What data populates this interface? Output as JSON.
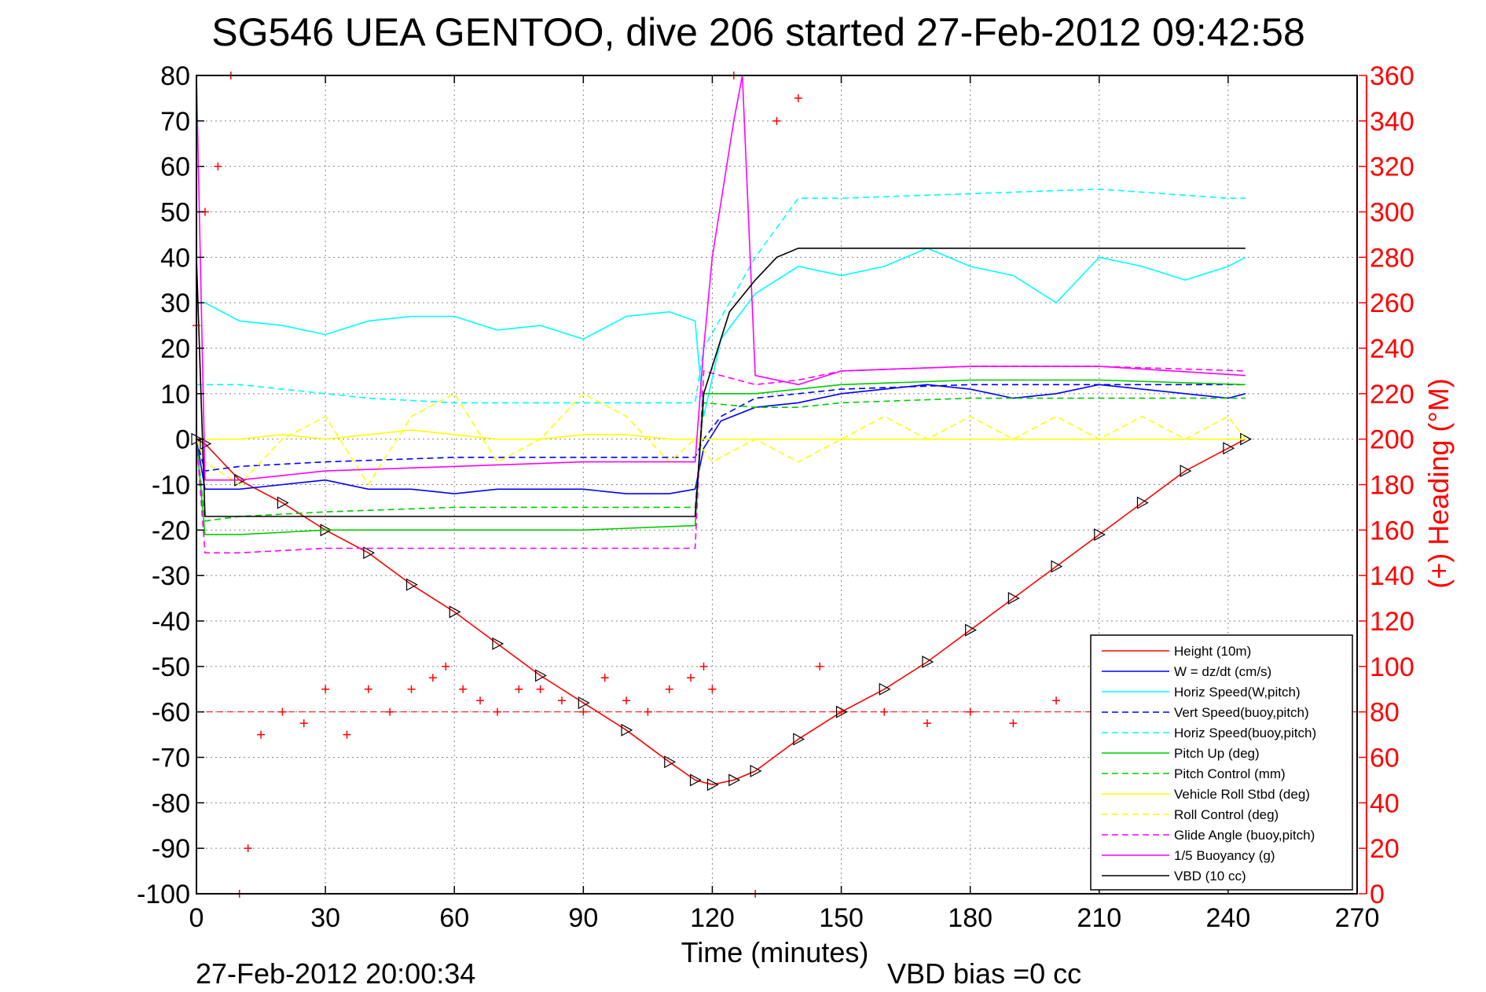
{
  "chart_data": {
    "type": "line",
    "title": "SG546 UEA GENTOO, dive 206 started 27-Feb-2012 09:42:58",
    "xlabel": "Time (minutes)",
    "ylabel_right": "(+) Heading (°M)",
    "xlim": [
      0,
      270
    ],
    "ylim": [
      -100,
      80
    ],
    "ylim_right": [
      0,
      360
    ],
    "x_ticks": [
      "0",
      "30",
      "60",
      "90",
      "120",
      "150",
      "180",
      "210",
      "240",
      "270"
    ],
    "y_ticks": [
      "80",
      "70",
      "60",
      "50",
      "40",
      "30",
      "20",
      "10",
      "0",
      "-10",
      "-20",
      "-30",
      "-40",
      "-50",
      "-60",
      "-70",
      "-80",
      "-90",
      "-100"
    ],
    "y_ticks_right": [
      "360",
      "340",
      "320",
      "300",
      "280",
      "260",
      "240",
      "220",
      "200",
      "180",
      "160",
      "140",
      "120",
      "100",
      "80",
      "60",
      "40",
      "20",
      "0"
    ],
    "grid": true,
    "legend_placement": "bottom-right",
    "footer_left": "27-Feb-2012 20:00:34",
    "footer_right": "VBD bias =0 cc",
    "colors": {
      "height": "#ff0000",
      "w": "#0000ff",
      "horiz_speed": "#00ffff",
      "pitch": "#00cc00",
      "roll": "#ffff00",
      "glide": "#ff00ff",
      "vbd": "#000000"
    },
    "series": [
      {
        "name": "Height (10m)",
        "color": "#ff0000",
        "style": "solid",
        "x": [
          0,
          2,
          10,
          20,
          30,
          40,
          50,
          60,
          70,
          80,
          90,
          100,
          110,
          116,
          120,
          125,
          130,
          140,
          150,
          160,
          170,
          180,
          190,
          200,
          210,
          220,
          230,
          240,
          244
        ],
        "y": [
          0,
          -1,
          -9,
          -14,
          -20,
          -25,
          -32,
          -38,
          -45,
          -52,
          -58,
          -64,
          -71,
          -75,
          -76,
          -75,
          -73,
          -66,
          -60,
          -55,
          -49,
          -42,
          -35,
          -28,
          -21,
          -14,
          -7,
          -2,
          0
        ]
      },
      {
        "name": "W = dz/dt (cm/s)",
        "color": "#0000ff",
        "style": "solid",
        "x": [
          0,
          2,
          10,
          20,
          30,
          40,
          50,
          60,
          70,
          80,
          90,
          100,
          110,
          116,
          118,
          122,
          130,
          140,
          150,
          160,
          170,
          180,
          190,
          200,
          210,
          220,
          230,
          240,
          244
        ],
        "y": [
          0,
          -11,
          -11,
          -10,
          -9,
          -11,
          -11,
          -12,
          -11,
          -11,
          -11,
          -12,
          -12,
          -11,
          -2,
          4,
          7,
          8,
          10,
          11,
          12,
          11,
          9,
          10,
          12,
          11,
          10,
          9,
          10
        ]
      },
      {
        "name": "Horiz Speed(W,pitch)",
        "color": "#00ffff",
        "style": "solid",
        "x": [
          0,
          2,
          10,
          20,
          30,
          40,
          50,
          60,
          70,
          80,
          90,
          100,
          110,
          116,
          118,
          122,
          130,
          140,
          150,
          160,
          170,
          180,
          190,
          200,
          210,
          220,
          230,
          240,
          244
        ],
        "y": [
          30,
          30,
          26,
          25,
          23,
          26,
          27,
          27,
          24,
          25,
          22,
          27,
          28,
          26,
          5,
          22,
          32,
          38,
          36,
          38,
          42,
          38,
          36,
          30,
          40,
          38,
          35,
          38,
          40
        ]
      },
      {
        "name": "Vert Speed(buoy,pitch)",
        "color": "#0000ff",
        "style": "dashed",
        "x": [
          0,
          2,
          10,
          30,
          60,
          90,
          116,
          118,
          122,
          130,
          140,
          150,
          180,
          210,
          244
        ],
        "y": [
          0,
          -7,
          -6,
          -5,
          -4,
          -4,
          -4,
          0,
          5,
          9,
          10,
          11,
          12,
          12,
          12
        ]
      },
      {
        "name": "Horiz Speed(buoy,pitch)",
        "color": "#00ffff",
        "style": "dashed",
        "x": [
          0,
          2,
          10,
          20,
          30,
          40,
          60,
          90,
          116,
          118,
          130,
          140,
          150,
          180,
          210,
          240,
          244
        ],
        "y": [
          12,
          12,
          12,
          11,
          10,
          9,
          8,
          8,
          8,
          20,
          40,
          53,
          53,
          54,
          55,
          53,
          53
        ]
      },
      {
        "name": "Pitch Up (deg)",
        "color": "#00cc00",
        "style": "solid",
        "x": [
          0,
          2,
          10,
          30,
          60,
          90,
          116,
          118,
          130,
          140,
          150,
          180,
          210,
          244
        ],
        "y": [
          0,
          -21,
          -21,
          -20,
          -20,
          -20,
          -19,
          10,
          10,
          11,
          12,
          13,
          13,
          12
        ]
      },
      {
        "name": "Pitch Control (mm)",
        "color": "#00cc00",
        "style": "dashed",
        "x": [
          0,
          2,
          10,
          30,
          60,
          90,
          116,
          118,
          130,
          140,
          150,
          180,
          210,
          244
        ],
        "y": [
          0,
          -18,
          -17,
          -16,
          -15,
          -15,
          -15,
          8,
          7,
          7,
          8,
          9,
          9,
          9
        ]
      },
      {
        "name": "Vehicle Roll Stbd (deg)",
        "color": "#ffff00",
        "style": "solid",
        "x": [
          0,
          2,
          10,
          20,
          30,
          40,
          50,
          60,
          70,
          80,
          90,
          100,
          110,
          116,
          120,
          130,
          140,
          150,
          160,
          170,
          180,
          190,
          200,
          210,
          220,
          230,
          240,
          244
        ],
        "y": [
          0,
          0,
          0,
          1,
          0,
          1,
          2,
          1,
          0,
          0,
          1,
          1,
          0,
          0,
          0,
          0,
          0,
          0,
          0,
          0,
          0,
          0,
          0,
          0,
          0,
          0,
          0,
          0
        ]
      },
      {
        "name": "Roll Control (deg)",
        "color": "#ffff00",
        "style": "dashed",
        "x": [
          0,
          2,
          10,
          20,
          30,
          40,
          50,
          60,
          70,
          80,
          90,
          100,
          110,
          116,
          120,
          130,
          140,
          150,
          160,
          170,
          180,
          190,
          200,
          210,
          220,
          230,
          240,
          244
        ],
        "y": [
          0,
          -5,
          -10,
          0,
          5,
          -10,
          5,
          10,
          -5,
          0,
          10,
          5,
          -5,
          0,
          -5,
          0,
          -5,
          0,
          5,
          0,
          5,
          0,
          5,
          0,
          5,
          0,
          5,
          0
        ]
      },
      {
        "name": "Glide Angle (buoy,pitch)",
        "color": "#ff00ff",
        "style": "dashed",
        "x": [
          0,
          2,
          10,
          30,
          60,
          90,
          116,
          118,
          130,
          140,
          150,
          180,
          210,
          244
        ],
        "y": [
          0,
          -25,
          -25,
          -24,
          -24,
          -24,
          -24,
          15,
          12,
          13,
          15,
          16,
          16,
          15
        ]
      },
      {
        "name": "1/5 Buoyancy (g)",
        "color": "#ff00ff",
        "style": "solid",
        "x": [
          0,
          2,
          10,
          20,
          30,
          60,
          90,
          116,
          118,
          120,
          125,
          127,
          130,
          140,
          150,
          180,
          210,
          244
        ],
        "y": [
          80,
          -9,
          -9,
          -8,
          -7,
          -6,
          -5,
          -5,
          20,
          40,
          70,
          80,
          14,
          12,
          15,
          16,
          16,
          14
        ]
      },
      {
        "name": "VBD (10 cc)",
        "color": "#000000",
        "style": "solid",
        "x": [
          0,
          2,
          10,
          30,
          60,
          90,
          116,
          118,
          124,
          130,
          135,
          140,
          150,
          180,
          200,
          220,
          244
        ],
        "y": [
          40,
          -17,
          -17,
          -17,
          -17,
          -17,
          -17,
          10,
          28,
          35,
          40,
          42,
          42,
          42,
          42,
          42,
          42
        ]
      },
      {
        "name": "(+) Heading (°M)",
        "color": "#ff0000",
        "style": "markers",
        "axis": "right",
        "x": [
          0,
          2,
          5,
          8,
          10,
          12,
          15,
          20,
          25,
          30,
          35,
          40,
          45,
          50,
          55,
          58,
          62,
          66,
          70,
          75,
          80,
          85,
          90,
          95,
          100,
          105,
          110,
          115,
          118,
          120,
          125,
          130,
          135,
          140,
          145,
          150,
          160,
          170,
          180,
          190,
          200,
          210,
          220
        ],
        "y": [
          250,
          300,
          320,
          360,
          0,
          20,
          70,
          80,
          75,
          90,
          70,
          90,
          80,
          90,
          95,
          100,
          90,
          85,
          80,
          90,
          90,
          85,
          80,
          95,
          85,
          80,
          90,
          95,
          100,
          90,
          360,
          0,
          340,
          350,
          100,
          80,
          80,
          75,
          80,
          75,
          85,
          80,
          85
        ]
      }
    ]
  }
}
